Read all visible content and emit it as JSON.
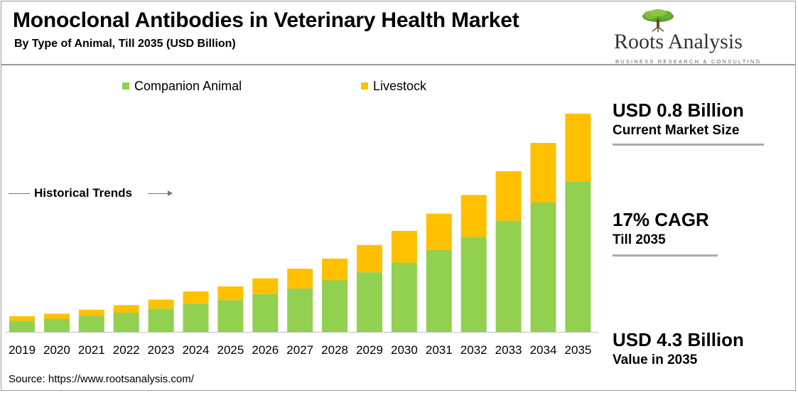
{
  "header": {
    "title": "Monoclonal Antibodies in Veterinary Health Market",
    "subtitle": "By Type of Animal, Till 2035 (USD Billion)"
  },
  "logo": {
    "name": "Roots Analysis",
    "tagline": "BUSINESS RESEARCH & CONSULTING",
    "icon": "tree-icon"
  },
  "annotation": {
    "historical_label": "Historical Trends"
  },
  "stats": [
    {
      "value": "USD 0.8 Billion",
      "label": "Current Market Size"
    },
    {
      "value": "17% CAGR",
      "label": "Till 2035"
    },
    {
      "value": "USD 4.3 Billion",
      "label": "Value in 2035"
    }
  ],
  "source": "Source: https://www.rootsanalysis.com/",
  "colors": {
    "companion": "#92d050",
    "livestock": "#ffc000"
  },
  "chart_data": {
    "type": "bar",
    "stacked": true,
    "categories": [
      "2019",
      "2020",
      "2021",
      "2022",
      "2023",
      "2024",
      "2025",
      "2026",
      "2027",
      "2028",
      "2029",
      "2030",
      "2031",
      "2032",
      "2033",
      "2034",
      "2035"
    ],
    "series": [
      {
        "name": "Companion Animal",
        "values": [
          0.22,
          0.26,
          0.32,
          0.38,
          0.46,
          0.56,
          0.63,
          0.75,
          0.86,
          1.02,
          1.18,
          1.37,
          1.62,
          1.88,
          2.2,
          2.56,
          2.98
        ]
      },
      {
        "name": "Livestock",
        "values": [
          0.09,
          0.1,
          0.12,
          0.15,
          0.18,
          0.24,
          0.27,
          0.31,
          0.39,
          0.43,
          0.54,
          0.63,
          0.72,
          0.83,
          0.98,
          1.18,
          1.34
        ]
      }
    ],
    "legend_position": "top",
    "title": "Monoclonal Antibodies in Veterinary Health Market",
    "xlabel": "",
    "ylabel": "",
    "ylim": [
      0,
      4.6
    ],
    "grid": false
  }
}
